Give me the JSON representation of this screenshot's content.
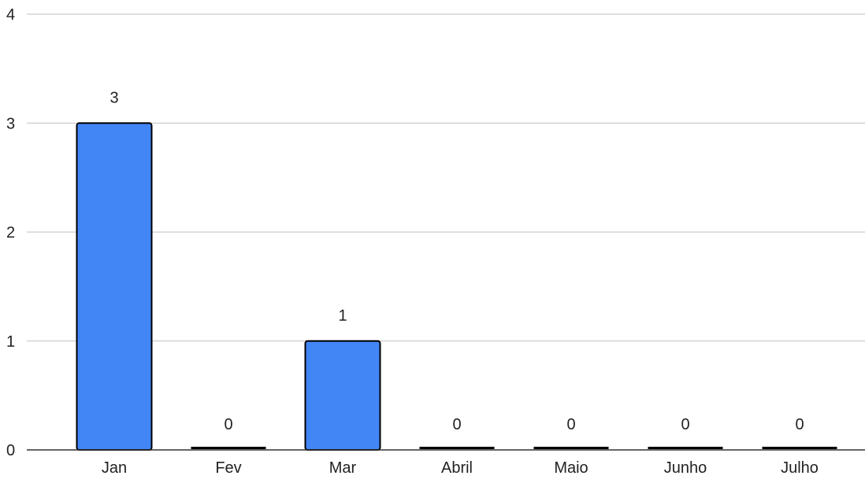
{
  "chart_data": {
    "type": "bar",
    "title": "",
    "xlabel": "",
    "ylabel": "",
    "categories": [
      "Jan",
      "Fev",
      "Mar",
      "Abril",
      "Maio",
      "Junho",
      "Julho"
    ],
    "values": [
      3,
      0,
      1,
      0,
      0,
      0,
      0
    ],
    "data_labels": [
      "3",
      "0",
      "1",
      "0",
      "0",
      "0",
      "0"
    ],
    "ylim": [
      0,
      4
    ],
    "y_ticks": [
      "0",
      "1",
      "2",
      "3",
      "4"
    ],
    "grid": true,
    "legend": "none",
    "colors": {
      "bar_fill": "#4285f4",
      "bar_stroke": "#000000",
      "gridline": "#cccccc",
      "baseline": "#333333"
    }
  }
}
